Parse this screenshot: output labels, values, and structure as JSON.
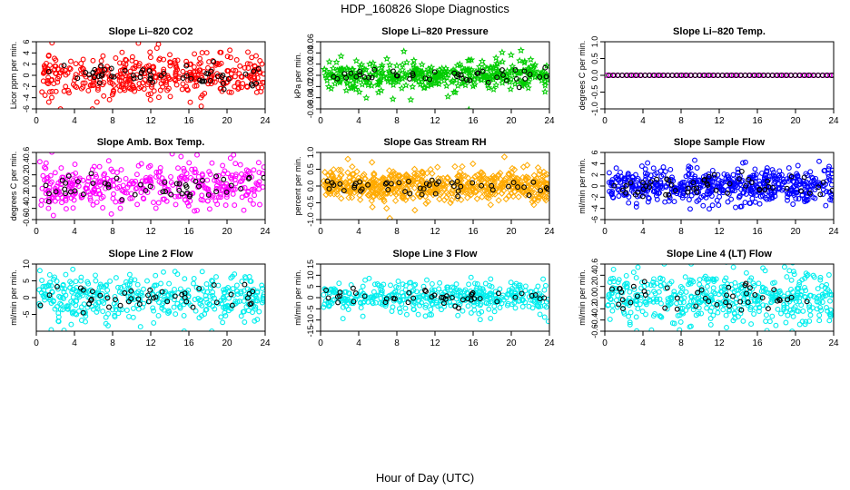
{
  "figure": {
    "title": "HDP_160826  Slope Diagnostics",
    "xlabel": "Hour of Day (UTC)"
  },
  "chart_data": [
    {
      "type": "scatter",
      "title": "Slope Li–820 CO2",
      "ylabel": "Licor ppm per min.",
      "xlim": [
        0,
        24
      ],
      "ylim": [
        -6,
        6
      ],
      "xticks": [
        0,
        4,
        8,
        12,
        16,
        20,
        24
      ],
      "yticks": [
        -6,
        -4,
        -2,
        0,
        2,
        4,
        6
      ],
      "color": "#ff0000",
      "spread": 1.9,
      "n": 420,
      "black_n": 55,
      "seed": 11,
      "marker": "circle"
    },
    {
      "type": "scatter",
      "title": "Slope Li–820 Pressure",
      "ylabel": "kPa per min.",
      "xlim": [
        0,
        24
      ],
      "ylim": [
        -0.06,
        0.06
      ],
      "xticks": [
        0,
        4,
        8,
        12,
        16,
        20,
        24
      ],
      "yticks": [
        -0.06,
        -0.04,
        -0.02,
        0.0,
        0.02,
        0.04,
        0.06
      ],
      "color": "#00cc00",
      "spread": 0.012,
      "n": 380,
      "black_n": 45,
      "seed": 23,
      "marker": "star"
    },
    {
      "type": "scatter",
      "title": "Slope Li–820 Temp.",
      "ylabel": "degrees C per min.",
      "xlim": [
        0,
        24
      ],
      "ylim": [
        -1.0,
        1.0
      ],
      "xticks": [
        0,
        4,
        8,
        12,
        16,
        20,
        24
      ],
      "yticks": [
        -1.0,
        -0.5,
        0.0,
        0.5,
        1.0
      ],
      "color": "#ff00ff",
      "spread": 0,
      "n": 60,
      "black_n": 50,
      "seed": 5,
      "marker": "circle",
      "flat": true
    },
    {
      "type": "scatter",
      "title": "Slope Amb. Box Temp.",
      "ylabel": "degrees C per min.",
      "xlim": [
        0,
        24
      ],
      "ylim": [
        -0.6,
        0.6
      ],
      "xticks": [
        0,
        4,
        8,
        12,
        16,
        20,
        24
      ],
      "yticks": [
        -0.6,
        -0.4,
        -0.2,
        0.0,
        0.2,
        0.4,
        0.6
      ],
      "color": "#ff00ff",
      "spread": 0.2,
      "n": 380,
      "black_n": 50,
      "seed": 37,
      "marker": "circle"
    },
    {
      "type": "scatter",
      "title": "Slope Gas Stream RH",
      "ylabel": "percent per min.",
      "xlim": [
        0,
        24
      ],
      "ylim": [
        -1.0,
        1.0
      ],
      "xticks": [
        0,
        4,
        8,
        12,
        16,
        20,
        24
      ],
      "yticks": [
        -1.0,
        -0.5,
        0.0,
        0.5,
        1.0
      ],
      "color": "#ffaa00",
      "spread": 0.22,
      "n": 600,
      "black_n": 50,
      "seed": 41,
      "marker": "diamond"
    },
    {
      "type": "scatter",
      "title": "Slope Sample Flow",
      "ylabel": "ml/min per min.",
      "xlim": [
        0,
        24
      ],
      "ylim": [
        -6,
        6
      ],
      "xticks": [
        0,
        4,
        8,
        12,
        16,
        20,
        24
      ],
      "yticks": [
        -6,
        -4,
        -2,
        0,
        2,
        4,
        6
      ],
      "color": "#0000ff",
      "spread": 1.5,
      "n": 560,
      "black_n": 55,
      "seed": 53,
      "marker": "circle"
    },
    {
      "type": "scatter",
      "title": "Slope Line 2 Flow",
      "ylabel": "ml/min per min.",
      "xlim": [
        0,
        24
      ],
      "ylim": [
        -10,
        10
      ],
      "xticks": [
        0,
        4,
        8,
        12,
        16,
        20,
        24
      ],
      "yticks": [
        -5,
        0,
        5,
        10
      ],
      "color": "#00eeee",
      "spread": 3.0,
      "n": 420,
      "black_n": 45,
      "seed": 67,
      "marker": "circle"
    },
    {
      "type": "scatter",
      "title": "Slope Line 3 Flow",
      "ylabel": "ml/min per min.",
      "xlim": [
        0,
        24
      ],
      "ylim": [
        -15,
        15
      ],
      "xticks": [
        0,
        4,
        8,
        12,
        16,
        20,
        24
      ],
      "yticks": [
        -15,
        -10,
        -5,
        0,
        5,
        10,
        15
      ],
      "color": "#00eeee",
      "spread": 3.0,
      "n": 420,
      "black_n": 45,
      "seed": 71,
      "marker": "circle"
    },
    {
      "type": "scatter",
      "title": "Slope Line 4 (LT) Flow",
      "ylabel": "ml/min per min.",
      "xlim": [
        0,
        24
      ],
      "ylim": [
        -0.6,
        0.6
      ],
      "xticks": [
        0,
        4,
        8,
        12,
        16,
        20,
        24
      ],
      "yticks": [
        -0.6,
        -0.4,
        -0.2,
        0.0,
        0.2,
        0.4,
        0.6
      ],
      "color": "#00eeee",
      "spread": 0.24,
      "n": 480,
      "black_n": 45,
      "seed": 83,
      "marker": "circle"
    }
  ]
}
